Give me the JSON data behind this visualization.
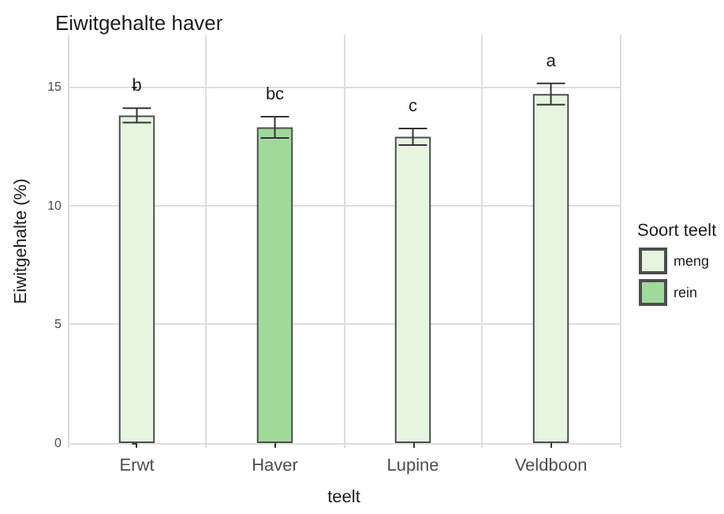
{
  "chart_data": {
    "type": "bar",
    "title": "Eiwitgehalte haver",
    "xlabel": "teelt",
    "ylabel": "Eiwitgehalte (%)",
    "legend_title": "Soort teelt",
    "categories": [
      "Erwt",
      "Haver",
      "Lupine",
      "Veldboon"
    ],
    "series": [
      {
        "name": "meng",
        "color": "#e5f5e0",
        "values": [
          13.8,
          null,
          12.9,
          14.7
        ],
        "errors": [
          0.3,
          null,
          0.35,
          0.45
        ]
      },
      {
        "name": "rein",
        "color": "#a1d99b",
        "values": [
          null,
          13.3,
          null,
          null
        ],
        "errors": [
          null,
          0.45,
          null,
          null
        ]
      }
    ],
    "stacked": true,
    "ylim": [
      -0.2,
      17.2
    ],
    "yticks": [
      0,
      5,
      10,
      15
    ],
    "grid": true,
    "legend": "right",
    "annotations": [
      "b",
      "bc",
      "c",
      "a"
    ]
  }
}
